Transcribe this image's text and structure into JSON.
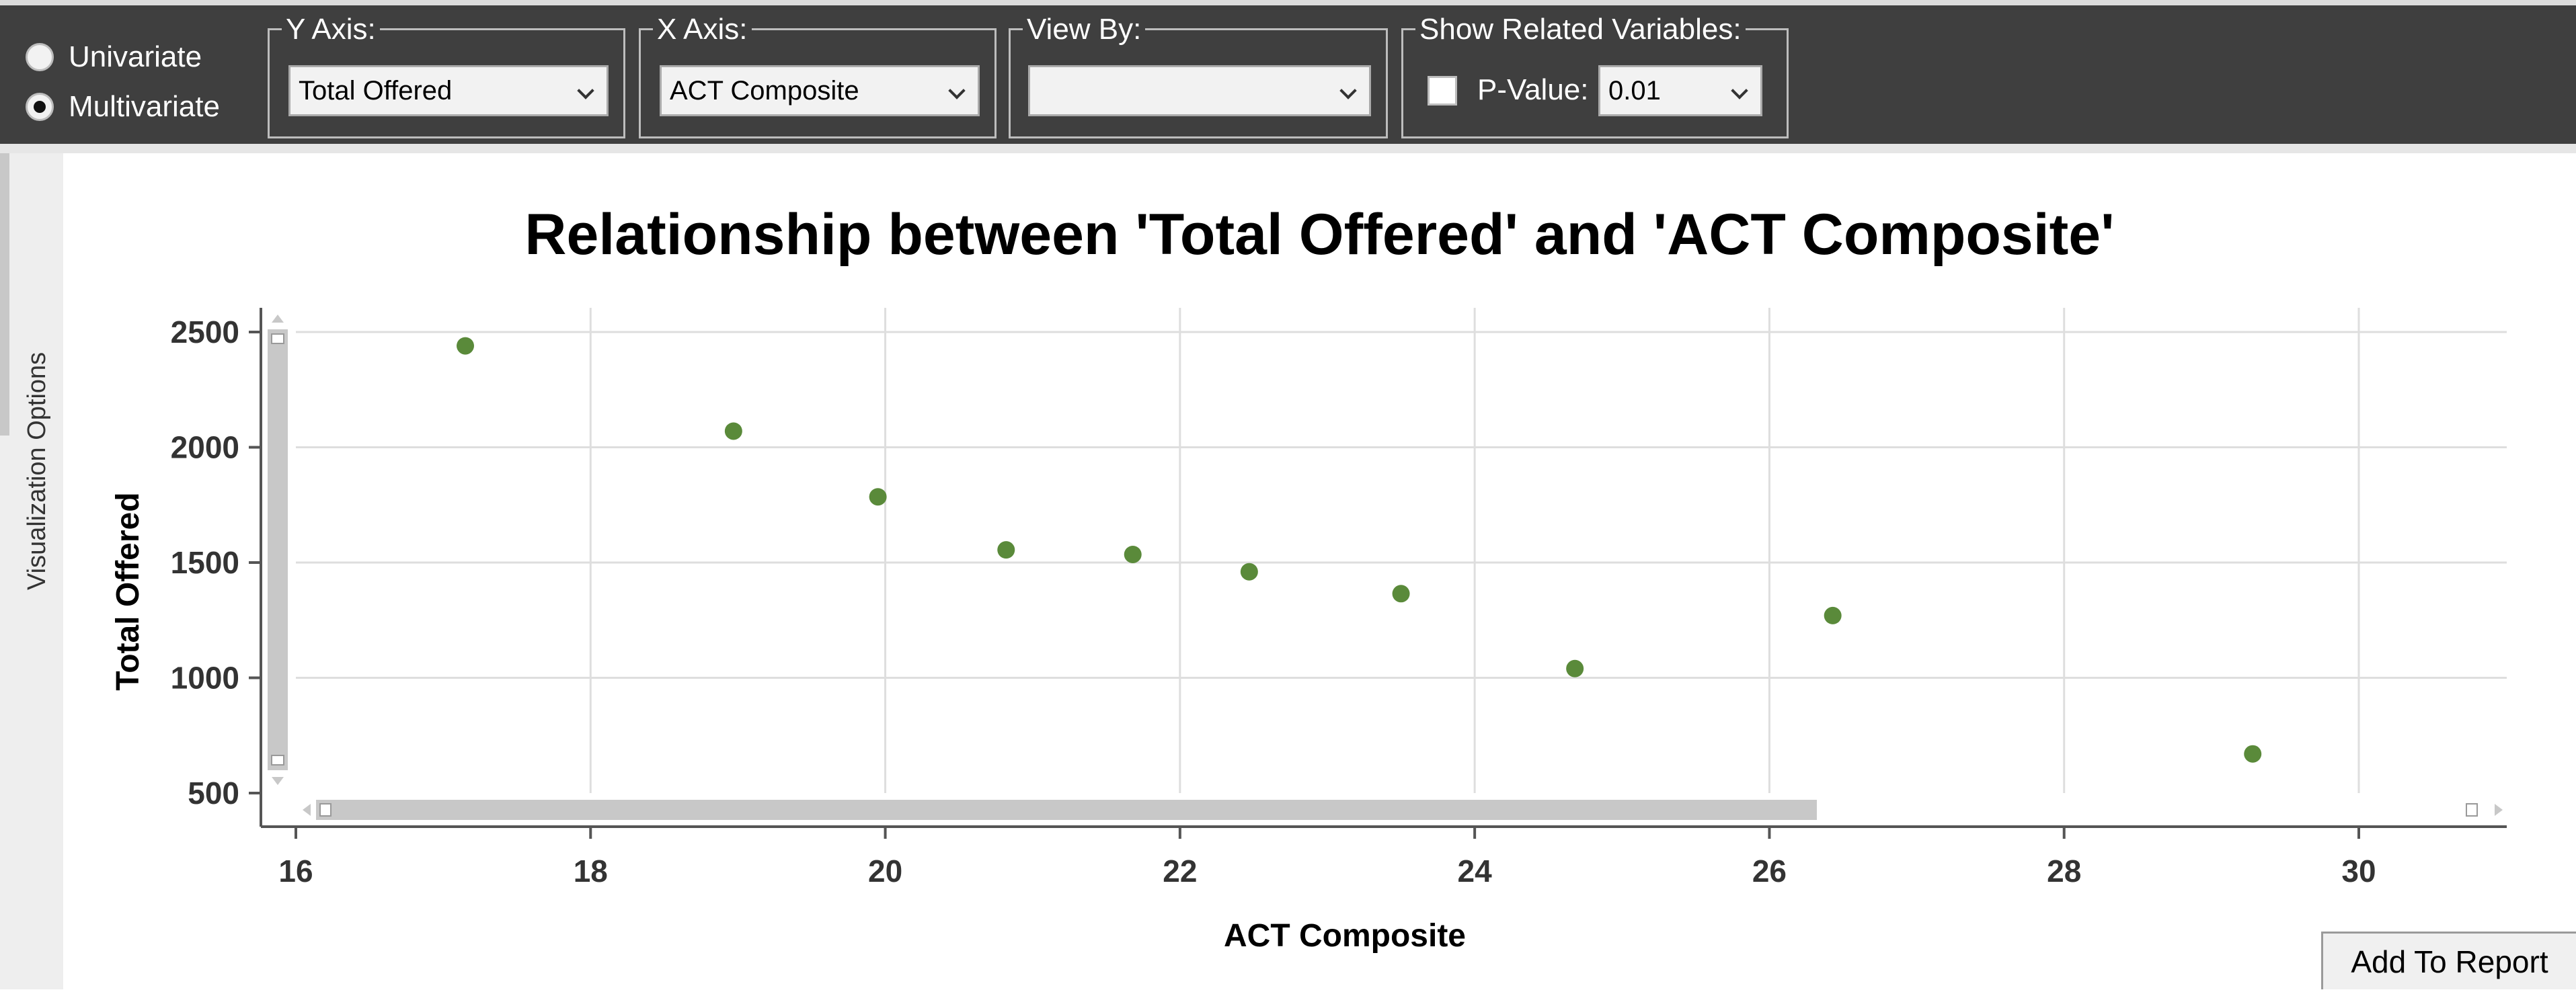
{
  "mode_options": [
    {
      "label": "Univariate",
      "selected": false
    },
    {
      "label": "Multivariate",
      "selected": true
    }
  ],
  "y_axis": {
    "legend": "Y Axis:",
    "value": "Total Offered"
  },
  "x_axis": {
    "legend": "X Axis:",
    "value": "ACT Composite"
  },
  "view_by": {
    "legend": "View By:",
    "value": ""
  },
  "related": {
    "legend": "Show Related Variables:",
    "checked": false,
    "pvalue_label": "P-Value:",
    "pvalue": "0.01"
  },
  "side_panel": {
    "label": "Visualization Options"
  },
  "add_to_report": "Add To Report",
  "colors": {
    "toolbar": "#3f3f3f",
    "point": "#5a8a3a"
  },
  "chart_data": {
    "type": "scatter",
    "title": "Relationship between 'Total Offered' and 'ACT Composite'",
    "xlabel": "ACT Composite",
    "ylabel": "Total Offered",
    "xlim": [
      16,
      30.8
    ],
    "ylim": [
      500,
      2600
    ],
    "x_ticks": [
      16,
      18,
      20,
      22,
      24,
      26,
      28,
      30
    ],
    "y_ticks": [
      500,
      1000,
      1500,
      2000,
      2500
    ],
    "grid": true,
    "points": [
      {
        "x": 17.15,
        "y": 2440
      },
      {
        "x": 18.97,
        "y": 2070
      },
      {
        "x": 19.95,
        "y": 1785
      },
      {
        "x": 20.82,
        "y": 1555
      },
      {
        "x": 21.68,
        "y": 1535
      },
      {
        "x": 22.47,
        "y": 1460
      },
      {
        "x": 23.5,
        "y": 1365
      },
      {
        "x": 24.68,
        "y": 1040
      },
      {
        "x": 26.43,
        "y": 1270
      },
      {
        "x": 29.28,
        "y": 670
      }
    ]
  }
}
